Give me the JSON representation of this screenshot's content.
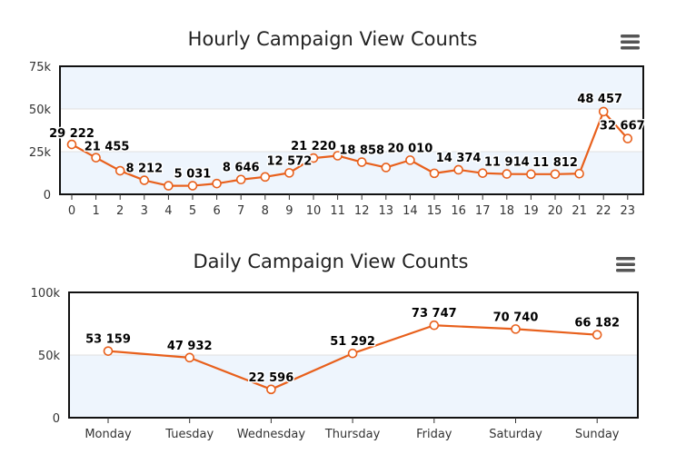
{
  "colors": {
    "series": "#e8601c",
    "plot_band": "#eef5fd",
    "frame": "#111111",
    "gridline": "#e0e0e0"
  },
  "icons": [
    "hamburger-menu-icon"
  ],
  "chart_data": [
    {
      "type": "line",
      "title": "Hourly Campaign View Counts",
      "xlabel": "",
      "ylabel": "",
      "categories": [
        "0",
        "1",
        "2",
        "3",
        "4",
        "5",
        "6",
        "7",
        "8",
        "9",
        "10",
        "11",
        "12",
        "13",
        "14",
        "15",
        "16",
        "17",
        "18",
        "19",
        "20",
        "21",
        "22",
        "23"
      ],
      "values": [
        29222,
        21455,
        13800,
        8212,
        5000,
        5031,
        6300,
        8646,
        10200,
        12572,
        21220,
        22600,
        18858,
        15700,
        20010,
        12300,
        14374,
        12400,
        11914,
        11800,
        11812,
        12100,
        48457,
        32667
      ],
      "data_labels": {
        "0": "29 222",
        "1": "21 455",
        "3": "8 212",
        "5": "5 031",
        "7": "8 646",
        "9": "12 572",
        "10": "21 220",
        "12": "18 858",
        "14": "20 010",
        "16": "14 374",
        "18": "11 914",
        "20": "11 812",
        "22": "48 457",
        "23": "32 667"
      },
      "y_ticks": [
        0,
        25000,
        50000,
        75000
      ],
      "y_tick_labels": [
        "0",
        "25k",
        "50k",
        "75k"
      ],
      "ylim": [
        0,
        75000
      ],
      "grid": true,
      "legend": "none"
    },
    {
      "type": "line",
      "title": "Daily Campaign View Counts",
      "xlabel": "",
      "ylabel": "",
      "categories": [
        "Monday",
        "Tuesday",
        "Wednesday",
        "Thursday",
        "Friday",
        "Saturday",
        "Sunday"
      ],
      "values": [
        53159,
        47932,
        22596,
        51292,
        73747,
        70740,
        66182
      ],
      "data_labels": {
        "0": "53 159",
        "1": "47 932",
        "2": "22 596",
        "3": "51 292",
        "4": "73 747",
        "5": "70 740",
        "6": "66 182"
      },
      "y_ticks": [
        0,
        50000,
        100000
      ],
      "y_tick_labels": [
        "0",
        "50k",
        "100k"
      ],
      "ylim": [
        0,
        100000
      ],
      "grid": true,
      "legend": "none"
    }
  ]
}
